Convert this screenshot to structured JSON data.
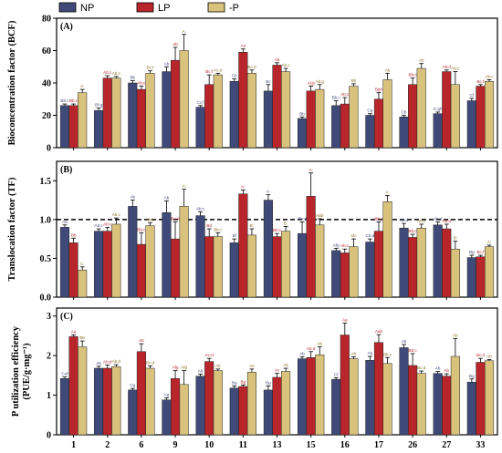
{
  "colors": {
    "NP": "#3f4a78",
    "LP": "#b8262c",
    "-P": "#d8c27c",
    "sig_NP": "#3f4a78",
    "sig_LP": "#b8262c",
    "sig_-P": "#8a7020",
    "axis": "#000000",
    "ref_line": "#000000"
  },
  "legend": {
    "position": "top-left",
    "items": [
      "NP",
      "LP",
      "-P"
    ]
  },
  "chart_data": [
    {
      "type": "bar",
      "panel": "(A)",
      "ylabel": "Bioconcentration factor (BCF)",
      "categories": [
        "1",
        "2",
        "6",
        "9",
        "10",
        "11",
        "13",
        "15",
        "16",
        "17",
        "26",
        "27",
        "33"
      ],
      "ylim": [
        0,
        80
      ],
      "yticks": [
        0,
        20,
        40,
        60,
        80
      ],
      "grid": false,
      "series": [
        {
          "name": "NP",
          "values": [
            26,
            23,
            40,
            47,
            25,
            41,
            35,
            18,
            26,
            20,
            19,
            21,
            29
          ],
          "errors": [
            1,
            1.5,
            1.5,
            3,
            1,
            1.5,
            4,
            1,
            3,
            1,
            1,
            1,
            1.5
          ],
          "letters": [
            "Bb:c",
            "Bf:g",
            "Bb",
            "Ab",
            "Cc:f",
            "Cb",
            "Bc",
            "Bb",
            "Bb:c",
            "Cg",
            "Cb",
            "C:gh",
            "Cf"
          ]
        },
        {
          "name": "LP",
          "values": [
            26,
            43,
            36,
            54,
            39,
            59,
            51,
            35,
            27,
            30,
            39,
            47,
            38
          ],
          "errors": [
            1,
            1.5,
            2,
            8,
            6,
            2,
            1.5,
            3,
            4,
            4,
            4,
            1,
            1
          ],
          "letters": [
            "Bb:c",
            "Ab:c",
            "Ab:c",
            "Ab",
            "Bc:f",
            "Aa",
            "Ab",
            "Aj:g",
            "Ab:c",
            "Bgh",
            "Bb:c",
            "Ab:d",
            "Bc:f"
          ]
        },
        {
          "name": "-P",
          "values": [
            34,
            43,
            46,
            60,
            45,
            46,
            47,
            36,
            38,
            42,
            49,
            39,
            41
          ],
          "errors": [
            2,
            1,
            1.5,
            10,
            1,
            2,
            2,
            3,
            1.5,
            4,
            3,
            8,
            1
          ],
          "letters": [
            "A:",
            "Ab:c",
            "Bc:f",
            "A:",
            "Ac:d",
            "Bc:d",
            "Ab:c",
            "Ab:g",
            "Bb",
            "Ab",
            "Ab",
            "Ab:c",
            "Ab:c"
          ]
        }
      ]
    },
    {
      "type": "bar",
      "panel": "(B)",
      "ylabel": "Translocation factor (TF)",
      "categories": [
        "1",
        "2",
        "6",
        "9",
        "10",
        "11",
        "13",
        "15",
        "16",
        "17",
        "26",
        "27",
        "33"
      ],
      "ylim": [
        0,
        1.75
      ],
      "yticks": [
        0.0,
        0.5,
        1.0,
        1.5
      ],
      "reference_line": 1.0,
      "grid": false,
      "series": [
        {
          "name": "NP",
          "values": [
            0.9,
            0.85,
            1.17,
            1.09,
            1.05,
            0.7,
            1.25,
            0.82,
            0.6,
            0.71,
            0.89,
            0.93,
            0.51
          ],
          "errors": [
            0.03,
            0.03,
            0.08,
            0.15,
            0.05,
            0.05,
            0.07,
            0.15,
            0.03,
            0.04,
            0.06,
            0.04,
            0.03
          ],
          "letters": [
            "Aa",
            "Ab:c",
            "Ab",
            "Ab",
            "Ab:c",
            "Bf",
            "A:",
            "Bb:d",
            "Afg",
            "Cb:d",
            "Ab:d",
            "Ab:d",
            "Bg"
          ]
        },
        {
          "name": "LP",
          "values": [
            0.7,
            0.85,
            0.68,
            0.75,
            0.78,
            1.33,
            0.78,
            1.3,
            0.57,
            0.85,
            0.77,
            0.88,
            0.52
          ],
          "errors": [
            0.06,
            0.05,
            0.15,
            0.22,
            0.1,
            0.05,
            0.04,
            0.3,
            0.05,
            0.12,
            0.04,
            0.06,
            0.02
          ],
          "letters": [
            "Bb",
            "Ab:c",
            "Bb:c",
            "Bc:d",
            "Bd",
            "A:",
            "Bb:c",
            "A:",
            "Ab:c",
            "Bb:c",
            "Bb:c",
            "Ab:d",
            "Bc:f"
          ]
        },
        {
          "name": "-P",
          "values": [
            0.35,
            0.94,
            0.92,
            1.17,
            0.78,
            0.8,
            0.85,
            0.93,
            0.65,
            1.23,
            0.89,
            0.62,
            0.65
          ],
          "errors": [
            0.04,
            0.08,
            0.04,
            0.22,
            0.05,
            0.08,
            0.06,
            0.08,
            0.1,
            0.08,
            0.05,
            0.1,
            0.02
          ],
          "letters": [
            "C:",
            "Ab:c",
            "Ab:c",
            "A:",
            "Bb:c",
            "B:",
            "B:",
            "ABb",
            "Ab:",
            "A:",
            "Ab:c",
            "B:",
            "A:"
          ]
        }
      ]
    },
    {
      "type": "bar",
      "panel": "(C)",
      "ylabel": "P utilization efficiency (PUE/g·mg⁻¹)",
      "categories": [
        "1",
        "2",
        "6",
        "9",
        "10",
        "11",
        "13",
        "15",
        "16",
        "17",
        "26",
        "27",
        "33"
      ],
      "ylim": [
        0,
        3.2
      ],
      "yticks": [
        0,
        1,
        2,
        3
      ],
      "grid": false,
      "series": [
        {
          "name": "NP",
          "values": [
            1.42,
            1.68,
            1.13,
            0.88,
            1.48,
            1.18,
            1.13,
            1.92,
            1.4,
            1.88,
            2.2,
            1.55,
            1.33
          ],
          "errors": [
            0.04,
            0.05,
            0.04,
            0.05,
            0.05,
            0.05,
            0.1,
            0.05,
            0.04,
            0.1,
            0.08,
            0.05,
            0.08
          ],
          "letters": [
            "Cef",
            "Ab",
            "Cg",
            "Ag",
            "Ab",
            "Bg",
            "Bg",
            "Ab",
            "Cf",
            "Ab",
            "Ab",
            "Ab",
            "Bg"
          ]
        },
        {
          "name": "LP",
          "values": [
            2.48,
            1.68,
            2.1,
            1.42,
            1.85,
            1.22,
            1.45,
            1.95,
            2.52,
            2.33,
            1.75,
            1.48,
            1.83
          ],
          "errors": [
            0.04,
            0.08,
            0.2,
            0.2,
            0.08,
            0.04,
            0.1,
            0.15,
            0.3,
            0.2,
            0.3,
            0.06,
            0.1
          ],
          "letters": [
            "Aa",
            "Ab:d",
            "Ab",
            "Afg",
            "Ac:d",
            "Bg",
            "Ac",
            "Ab:d",
            "Aa",
            "Aab",
            "Bb:c",
            "Ab",
            "Bc:d"
          ]
        },
        {
          "name": "-P",
          "values": [
            2.22,
            1.72,
            1.68,
            1.27,
            1.62,
            1.58,
            1.6,
            2.02,
            1.92,
            1.8,
            1.55,
            1.98,
            1.87
          ],
          "errors": [
            0.15,
            0.05,
            0.06,
            0.35,
            0.04,
            0.08,
            0.08,
            0.2,
            0.05,
            0.15,
            0.06,
            0.45,
            0.03
          ],
          "letters": [
            "Bb",
            "Ab:d",
            "Bc:d",
            "Afg",
            "Ab",
            "Ae",
            "Ab",
            "Ab",
            "Ab",
            "Bb:c",
            "Bc:d",
            "Ab",
            "Ab"
          ]
        }
      ]
    }
  ]
}
